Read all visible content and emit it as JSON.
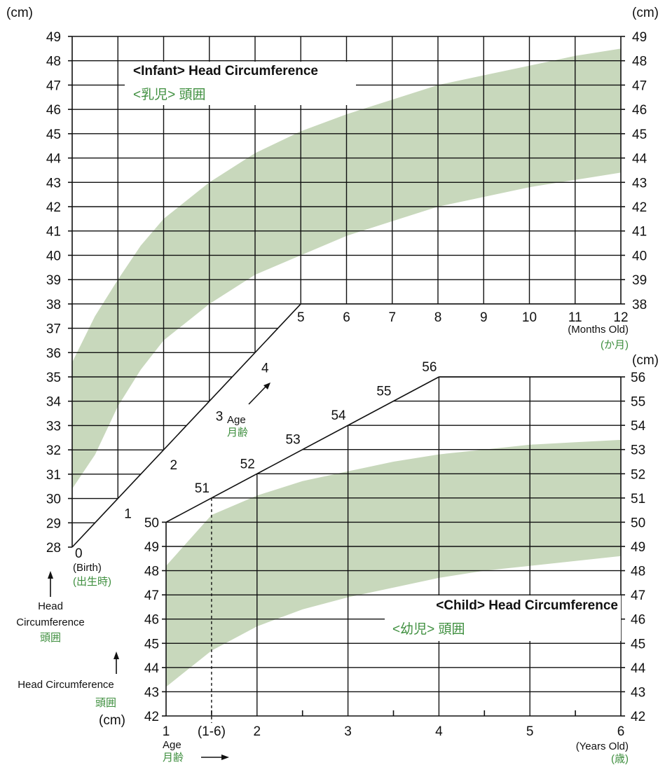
{
  "chart_data": [
    {
      "type": "area",
      "title": "<Infant> Head Circumference",
      "title_ja": "<乳児> 頭囲",
      "y_unit": "(cm)",
      "ylim": [
        28,
        49
      ],
      "yticks": [
        28,
        29,
        30,
        31,
        32,
        33,
        34,
        35,
        36,
        37,
        38,
        39,
        40,
        41,
        42,
        43,
        44,
        45,
        46,
        47,
        48,
        49
      ],
      "xlim": [
        0,
        12
      ],
      "x_unit": "(Months Old)",
      "x_unit_ja": "(か月)",
      "x_tick_labels": [
        "0",
        "1",
        "2",
        "3",
        "4",
        "5",
        "6",
        "7",
        "8",
        "9",
        "10",
        "11",
        "12"
      ],
      "birth_label": "(Birth)",
      "birth_label_ja": "(出生時)",
      "age_label": "Age",
      "age_label_ja": "月齢",
      "grid": true,
      "color": "#c8d8bc",
      "band": {
        "x": [
          0,
          0.5,
          1,
          1.5,
          2,
          3,
          4,
          5,
          6,
          7,
          8,
          9,
          10,
          11,
          12
        ],
        "lower": [
          30.4,
          31.8,
          33.8,
          35.3,
          36.5,
          38.0,
          39.2,
          40.0,
          40.8,
          41.4,
          42.0,
          42.4,
          42.8,
          43.1,
          43.4
        ],
        "upper": [
          35.6,
          37.5,
          39.0,
          40.4,
          41.5,
          43.0,
          44.2,
          45.1,
          45.8,
          46.4,
          47.0,
          47.4,
          47.8,
          48.2,
          48.5
        ]
      }
    },
    {
      "type": "area",
      "title": "<Child> Head Circumference",
      "title_ja": "<幼児> 頭囲",
      "y_unit": "(cm)",
      "ylim": [
        42,
        56
      ],
      "yticks": [
        42,
        43,
        44,
        45,
        46,
        47,
        48,
        49,
        50,
        51,
        52,
        53,
        54,
        55,
        56
      ],
      "xlim": [
        1,
        6
      ],
      "x_unit": "(Years Old)",
      "x_unit_ja": "(歳)",
      "x_tick_labels": [
        "1",
        "(1-6)",
        "2",
        "3",
        "4",
        "5",
        "6"
      ],
      "age_label": "Age",
      "age_label_ja": "月齢",
      "grid": true,
      "color": "#c8d8bc",
      "band": {
        "x": [
          1,
          1.5,
          2,
          2.5,
          3,
          3.5,
          4,
          4.5,
          5,
          5.5,
          6
        ],
        "lower": [
          43.2,
          44.7,
          45.7,
          46.4,
          46.9,
          47.3,
          47.7,
          48.0,
          48.2,
          48.4,
          48.6
        ],
        "upper": [
          48.2,
          50.3,
          51.1,
          51.7,
          52.1,
          52.5,
          52.8,
          53.0,
          53.2,
          53.3,
          53.4
        ]
      }
    }
  ],
  "left_labels": {
    "head_circumference_1": "Head",
    "head_circumference_2": "Circumference",
    "head_circumference_ja": "頭囲",
    "head_circumference_child": "Head Circumference",
    "head_circumference_child_ja": "頭囲",
    "unit": "(cm)"
  }
}
